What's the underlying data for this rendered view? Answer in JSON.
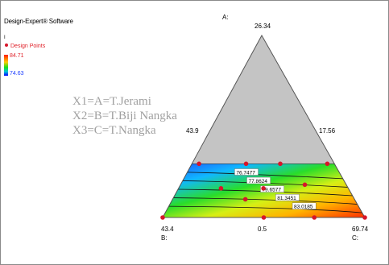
{
  "header": {
    "software": "Design-Expert® Software",
    "axis_mark": "I"
  },
  "legend": {
    "points_label": "Design Points",
    "high": "84.71",
    "low": "74.63",
    "point_color": "#d6162a"
  },
  "factor_key": [
    "X1=A=T.Jerami",
    "X2=B=T.Biji Nangka",
    "X3=C=T.Nangka"
  ],
  "chart_data": {
    "type": "ternary-contour",
    "vertex_labels": {
      "top": "A:",
      "bottom_left": "B:",
      "bottom_right": "C:"
    },
    "vertex_values": {
      "top": "26.34",
      "bottom_left": "43.4",
      "bottom_right": "69.74"
    },
    "edge_labels": {
      "left": "43.9",
      "right": "17.56",
      "bottom": "0.5"
    },
    "feasible_band": {
      "bottom_fraction_of_height": 0.295
    },
    "response_range": [
      74.63,
      84.71
    ],
    "contours": [
      "76.7477",
      "77.8624",
      "79.6577",
      "81.3451",
      "83.0185"
    ],
    "design_points": [
      {
        "u": 0.05,
        "v": 0.295
      },
      {
        "u": 0.38,
        "v": 0.295
      },
      {
        "u": 0.62,
        "v": 0.295
      },
      {
        "u": 0.95,
        "v": 0.295
      },
      {
        "u": 0.25,
        "v": 0.16
      },
      {
        "u": 0.5,
        "v": 0.16
      },
      {
        "u": 0.75,
        "v": 0.18
      },
      {
        "u": 0.4,
        "v": 0.1
      },
      {
        "u": 0.0,
        "v": 0.0
      },
      {
        "u": 0.5,
        "v": 0.0
      },
      {
        "u": 0.75,
        "v": 0.0
      },
      {
        "u": 1.0,
        "v": 0.0
      }
    ],
    "colors": {
      "simplex": "#c4c4c4",
      "point": "#d6162a"
    }
  }
}
